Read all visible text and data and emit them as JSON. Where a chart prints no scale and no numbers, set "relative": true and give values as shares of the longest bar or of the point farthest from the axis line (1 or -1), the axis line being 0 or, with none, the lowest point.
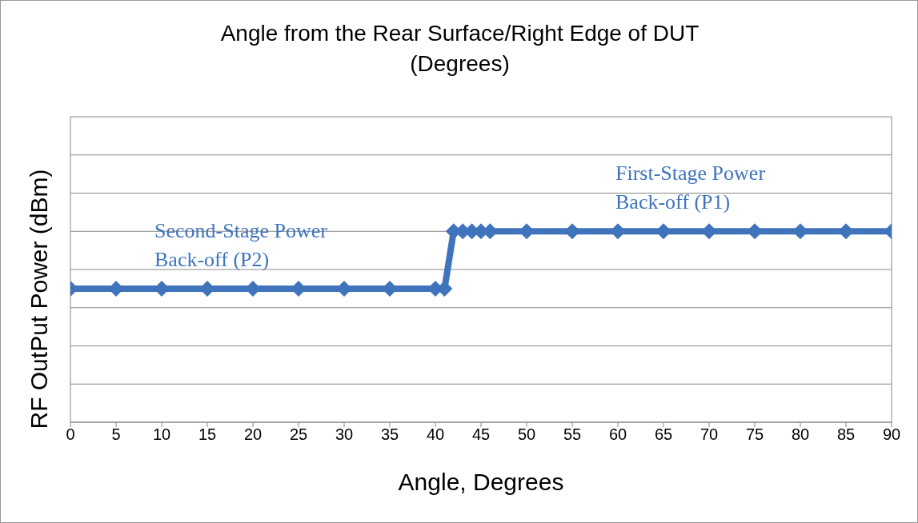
{
  "chart_data": {
    "type": "line",
    "title": "Angle from the Rear Surface/Right Edge of DUT\n(Degrees)",
    "xlabel": "Angle, Degrees",
    "ylabel": "RF OutPut Power (dBm)",
    "relative": true,
    "x": [
      0,
      5,
      10,
      15,
      20,
      25,
      30,
      35,
      40,
      41,
      42,
      43,
      44,
      45,
      46,
      50,
      55,
      60,
      65,
      70,
      75,
      80,
      85,
      90
    ],
    "series": [
      {
        "color": "#3f74bd",
        "values": [
          0.7,
          0.7,
          0.7,
          0.7,
          0.7,
          0.7,
          0.7,
          0.7,
          0.7,
          0.7,
          1,
          1,
          1,
          1,
          1,
          1,
          1,
          1,
          1,
          1,
          1,
          1,
          1,
          1
        ]
      }
    ],
    "xlim": [
      0,
      90
    ],
    "xticks": [
      0,
      5,
      10,
      15,
      20,
      25,
      30,
      35,
      40,
      45,
      50,
      55,
      60,
      65,
      70,
      75,
      80,
      85,
      90
    ],
    "annotations": [
      "Second-Stage Power\nBack-off (P2)",
      "First-Stage Power\nBack-off (P1)"
    ],
    "grid": "y",
    "marker": "diamond",
    "line_style": "solid"
  }
}
